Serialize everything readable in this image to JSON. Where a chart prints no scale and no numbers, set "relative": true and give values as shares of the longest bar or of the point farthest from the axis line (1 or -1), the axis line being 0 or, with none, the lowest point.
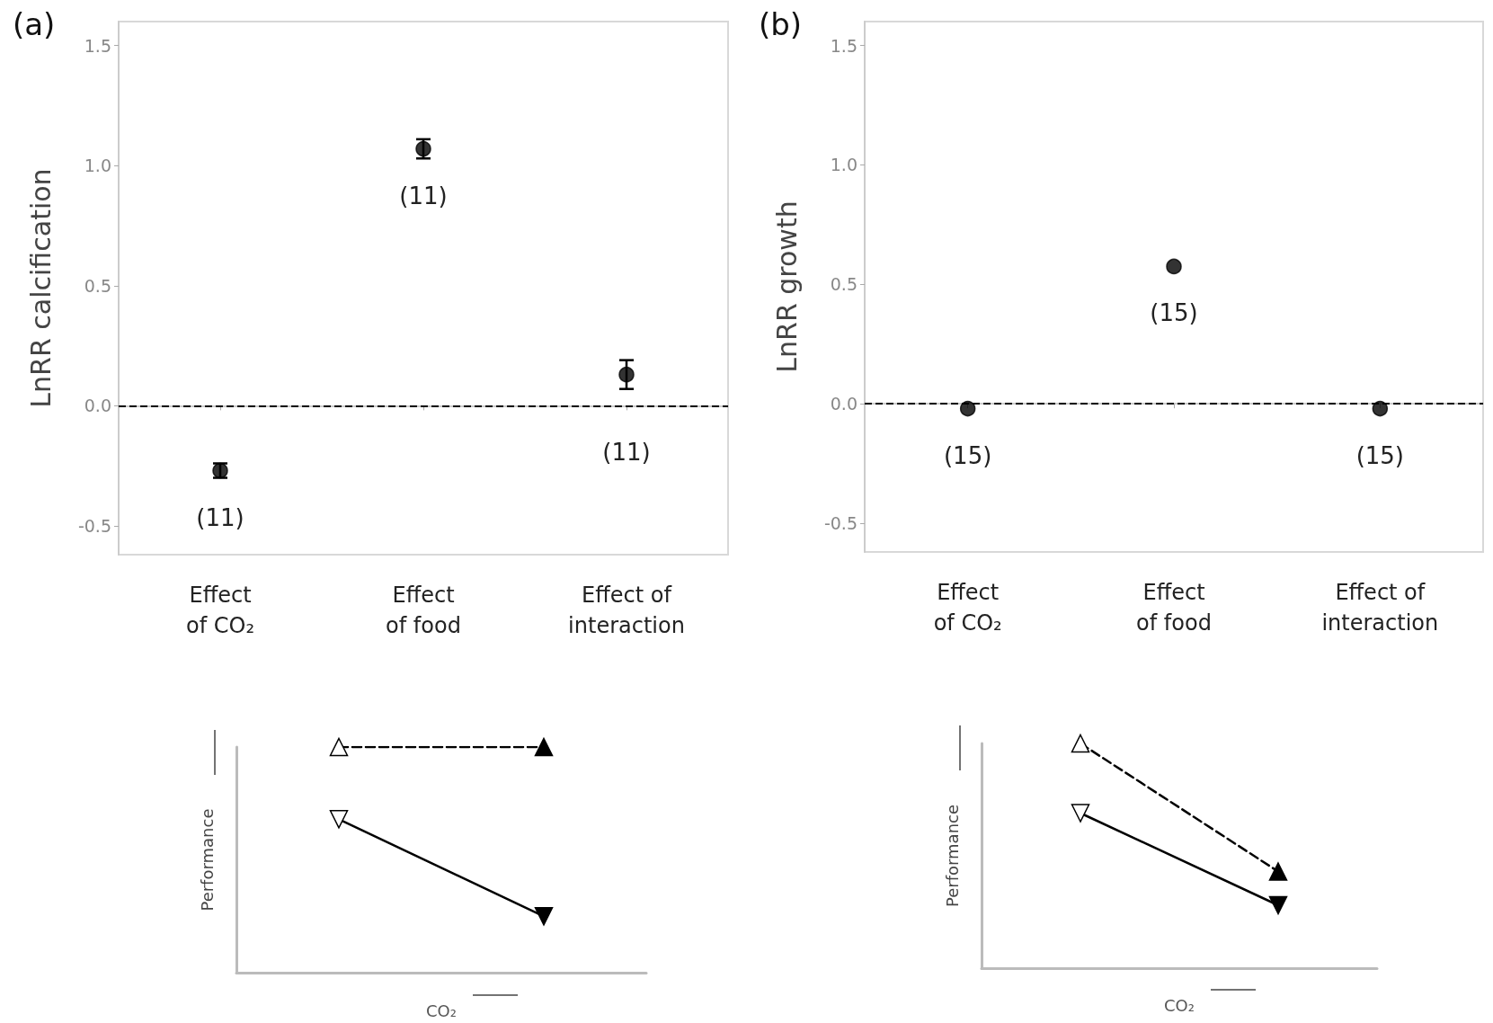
{
  "chart_data": [
    {
      "type": "scatter",
      "title": "(a)",
      "ylabel": "LnRR calcification",
      "categories": [
        "Effect\nof CO₂",
        "Effect\nof food",
        "Effect of\ninteraction"
      ],
      "values": [
        -0.27,
        1.07,
        0.13
      ],
      "errors": [
        0.03,
        0.04,
        0.06
      ],
      "color": "#000000",
      "marker": "circle",
      "ylim": [
        -0.62,
        1.6
      ],
      "yticks": [
        {
          "value": -0.5,
          "label": "-0.5"
        },
        {
          "value": 0,
          "label": "0.0"
        },
        {
          "value": 0.5,
          "label": "0.5"
        },
        {
          "value": 1,
          "label": "1.0"
        },
        {
          "value": 1.5,
          "label": "1.5"
        }
      ],
      "grid": false,
      "ref_lines": [
        {
          "axis": "y",
          "value": 0,
          "color": "#000000",
          "line_style": "dashed"
        }
      ],
      "annotations": [
        "(11)",
        "(11)",
        "(11)"
      ]
    },
    {
      "type": "scatter",
      "title": "(b)",
      "ylabel": "LnRR growth",
      "categories": [
        "Effect\nof CO₂",
        "Effect\nof food",
        "Effect of\ninteraction"
      ],
      "values": [
        -0.02,
        0.575,
        -0.02
      ],
      "color": "#000000",
      "marker": "circle",
      "ylim": [
        -0.62,
        1.6
      ],
      "yticks": [
        {
          "value": -0.5,
          "label": "-0.5"
        },
        {
          "value": 0,
          "label": "0.0"
        },
        {
          "value": 0.5,
          "label": "0.5"
        },
        {
          "value": 1,
          "label": "1.0"
        },
        {
          "value": 1.5,
          "label": "1.5"
        }
      ],
      "grid": false,
      "ref_lines": [
        {
          "axis": "y",
          "value": 0,
          "color": "#000000",
          "line_style": "dashed"
        }
      ],
      "annotations": [
        "(15)",
        "(15)",
        "(15)"
      ]
    },
    {
      "type": "line",
      "relative": true,
      "xlabel": "CO₂",
      "ylabel": "Performance",
      "categories": [
        null,
        null
      ],
      "series": [
        {
          "color": "#000000",
          "line_style": "dashed",
          "marker": "triangle",
          "colors": [
            "#ffffff",
            "#000000"
          ],
          "values": [
            1,
            1
          ]
        },
        {
          "color": "#000000",
          "line_style": "solid",
          "marker": "triangle-down",
          "colors": [
            "#ffffff",
            "#000000"
          ],
          "values": [
            0.68,
            0.25
          ]
        }
      ]
    },
    {
      "type": "line",
      "relative": true,
      "xlabel": "CO₂",
      "ylabel": "Performance",
      "categories": [
        null,
        null
      ],
      "series": [
        {
          "color": "#000000",
          "line_style": "dashed",
          "marker": "triangle",
          "colors": [
            "#ffffff",
            "#000000"
          ],
          "values": [
            1,
            0.43
          ]
        },
        {
          "color": "#000000",
          "line_style": "solid",
          "marker": "triangle-down",
          "colors": [
            "#ffffff",
            "#000000"
          ],
          "values": [
            0.69,
            0.28
          ]
        }
      ]
    }
  ]
}
